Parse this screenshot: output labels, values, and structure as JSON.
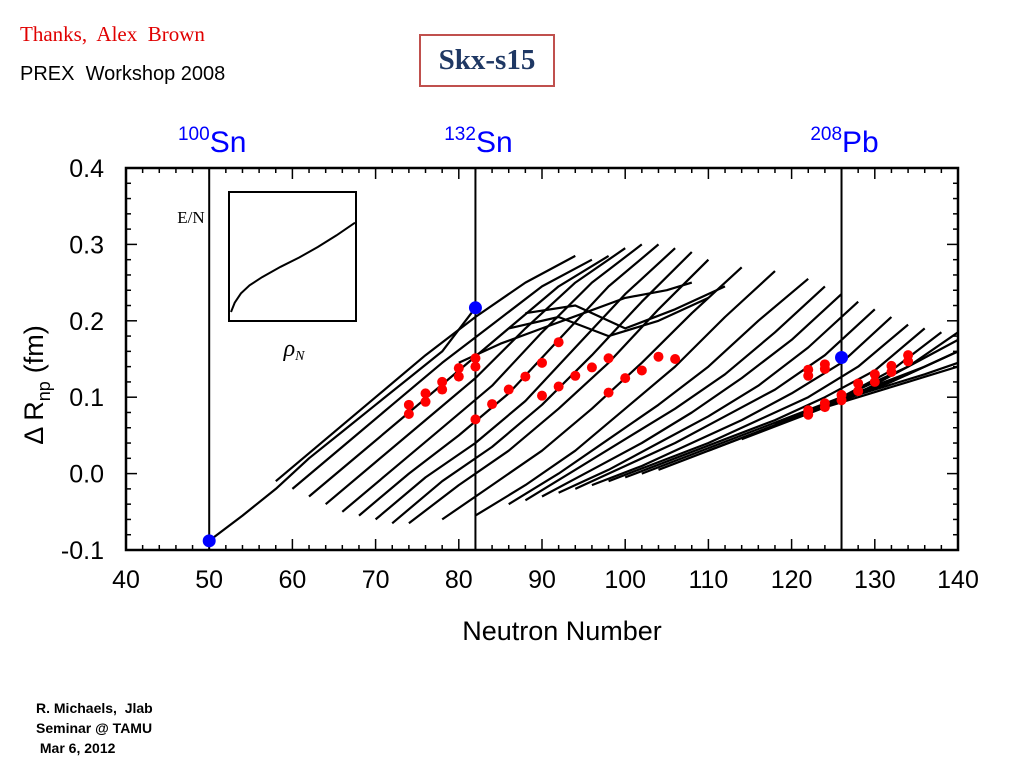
{
  "header": {
    "thanks": "Thanks,  Alex  Brown",
    "workshop": "PREX  Workshop 2008",
    "title": "Skx-s15"
  },
  "footer": {
    "line1": "R. Michaels,  Jlab",
    "line2": "Seminar @ TAMU",
    "line3": " Mar 6, 2012"
  },
  "colors": {
    "accent_red": "#ff0000",
    "marker_blue": "#0000ff",
    "title_blue": "#1f3864",
    "title_border": "#c0504d"
  },
  "chart_data": {
    "type": "line",
    "xlabel": "Neutron Number",
    "ylabel_main": "Δ R",
    "ylabel_sub": "np",
    "ylabel_unit": "(fm)",
    "xlim": [
      40,
      140
    ],
    "ylim": [
      -0.1,
      0.4
    ],
    "xticks": [
      40,
      50,
      60,
      70,
      80,
      90,
      100,
      110,
      120,
      130,
      140
    ],
    "yticks": [
      -0.1,
      0.0,
      0.1,
      0.2,
      0.3,
      0.4
    ],
    "ytick_labels": [
      "-0.1",
      "0.0",
      "0.1",
      "0.2",
      "0.3",
      "0.4"
    ],
    "magic_lines": [
      {
        "n": 50,
        "mass": "100",
        "element": "Sn"
      },
      {
        "n": 82,
        "mass": "132",
        "element": "Sn"
      },
      {
        "n": 126,
        "mass": "208",
        "element": "Pb"
      }
    ],
    "blue_points": [
      {
        "x": 50,
        "y": -0.088
      },
      {
        "x": 82,
        "y": 0.217
      },
      {
        "x": 126,
        "y": 0.152
      }
    ],
    "red_points": [
      [
        74,
        0.09
      ],
      [
        74,
        0.078
      ],
      [
        76,
        0.105
      ],
      [
        76,
        0.094
      ],
      [
        78,
        0.12
      ],
      [
        78,
        0.11
      ],
      [
        80,
        0.138
      ],
      [
        80,
        0.127
      ],
      [
        82,
        0.151
      ],
      [
        82,
        0.14
      ],
      [
        82,
        0.071
      ],
      [
        84,
        0.091
      ],
      [
        86,
        0.11
      ],
      [
        88,
        0.127
      ],
      [
        90,
        0.145
      ],
      [
        90,
        0.102
      ],
      [
        92,
        0.172
      ],
      [
        92,
        0.114
      ],
      [
        94,
        0.128
      ],
      [
        96,
        0.139
      ],
      [
        98,
        0.151
      ],
      [
        98,
        0.106
      ],
      [
        100,
        0.125
      ],
      [
        102,
        0.135
      ],
      [
        104,
        0.153
      ],
      [
        106,
        0.15
      ],
      [
        122,
        0.136
      ],
      [
        122,
        0.128
      ],
      [
        122,
        0.083
      ],
      [
        122,
        0.077
      ],
      [
        124,
        0.143
      ],
      [
        124,
        0.137
      ],
      [
        124,
        0.092
      ],
      [
        124,
        0.087
      ],
      [
        126,
        0.103
      ],
      [
        126,
        0.096
      ],
      [
        128,
        0.118
      ],
      [
        128,
        0.108
      ],
      [
        130,
        0.13
      ],
      [
        130,
        0.12
      ],
      [
        132,
        0.141
      ],
      [
        132,
        0.133
      ],
      [
        134,
        0.155
      ],
      [
        134,
        0.147
      ]
    ],
    "isotope_chains": [
      {
        "x": [
          50,
          54,
          58,
          62,
          66,
          70,
          74,
          78,
          82
        ],
        "y": [
          -0.088,
          -0.055,
          -0.02,
          0.02,
          0.055,
          0.09,
          0.125,
          0.16,
          0.217
        ]
      },
      {
        "x": [
          58,
          64,
          70,
          76,
          82,
          88,
          94
        ],
        "y": [
          -0.01,
          0.045,
          0.1,
          0.155,
          0.205,
          0.25,
          0.285
        ]
      },
      {
        "x": [
          60,
          66,
          72,
          78,
          84,
          90,
          96
        ],
        "y": [
          -0.02,
          0.035,
          0.09,
          0.145,
          0.195,
          0.245,
          0.28
        ]
      },
      {
        "x": [
          62,
          68,
          74,
          80,
          86,
          92,
          98
        ],
        "y": [
          -0.03,
          0.025,
          0.08,
          0.135,
          0.19,
          0.245,
          0.285
        ]
      },
      {
        "x": [
          64,
          70,
          76,
          82,
          88,
          94,
          100
        ],
        "y": [
          -0.04,
          0.015,
          0.07,
          0.125,
          0.19,
          0.25,
          0.295
        ]
      },
      {
        "x": [
          66,
          72,
          78,
          84,
          90,
          96,
          102
        ],
        "y": [
          -0.05,
          0.005,
          0.06,
          0.115,
          0.185,
          0.25,
          0.3
        ]
      },
      {
        "x": [
          68,
          74,
          80,
          86,
          92,
          98,
          104
        ],
        "y": [
          -0.055,
          0.0,
          0.05,
          0.105,
          0.175,
          0.245,
          0.3
        ]
      },
      {
        "x": [
          70,
          76,
          82,
          88,
          94,
          100,
          106
        ],
        "y": [
          -0.06,
          -0.005,
          0.04,
          0.095,
          0.165,
          0.235,
          0.295
        ]
      },
      {
        "x": [
          72,
          78,
          84,
          90,
          96,
          102,
          108
        ],
        "y": [
          -0.065,
          -0.01,
          0.035,
          0.09,
          0.155,
          0.225,
          0.29
        ]
      },
      {
        "x": [
          74,
          80,
          86,
          92,
          98,
          104,
          110
        ],
        "y": [
          -0.065,
          -0.015,
          0.03,
          0.085,
          0.145,
          0.215,
          0.28
        ]
      },
      {
        "x": [
          78,
          84,
          90,
          96,
          102,
          108,
          114
        ],
        "y": [
          -0.06,
          -0.015,
          0.03,
          0.085,
          0.145,
          0.21,
          0.27
        ]
      },
      {
        "x": [
          82,
          88,
          94,
          100,
          106,
          112,
          118
        ],
        "y": [
          -0.055,
          -0.015,
          0.03,
          0.085,
          0.14,
          0.205,
          0.265
        ]
      },
      {
        "x": [
          86,
          92,
          98,
          104,
          110,
          116,
          122
        ],
        "y": [
          -0.04,
          0.0,
          0.045,
          0.09,
          0.14,
          0.2,
          0.255
        ]
      },
      {
        "x": [
          88,
          94,
          100,
          106,
          112,
          118,
          124
        ],
        "y": [
          -0.035,
          0.005,
          0.045,
          0.085,
          0.13,
          0.185,
          0.245
        ]
      },
      {
        "x": [
          90,
          96,
          102,
          108,
          114,
          120,
          126
        ],
        "y": [
          -0.03,
          0.005,
          0.04,
          0.08,
          0.125,
          0.175,
          0.235
        ]
      },
      {
        "x": [
          92,
          98,
          104,
          110,
          116,
          122,
          128
        ],
        "y": [
          -0.025,
          0.005,
          0.04,
          0.075,
          0.115,
          0.165,
          0.225
        ]
      },
      {
        "x": [
          94,
          100,
          106,
          112,
          118,
          124,
          130
        ],
        "y": [
          -0.02,
          0.01,
          0.04,
          0.075,
          0.11,
          0.155,
          0.215
        ]
      },
      {
        "x": [
          96,
          102,
          108,
          114,
          120,
          126,
          132
        ],
        "y": [
          -0.015,
          0.01,
          0.04,
          0.07,
          0.105,
          0.145,
          0.205
        ]
      },
      {
        "x": [
          98,
          104,
          110,
          116,
          122,
          128,
          134
        ],
        "y": [
          -0.01,
          0.015,
          0.04,
          0.07,
          0.1,
          0.14,
          0.195
        ]
      },
      {
        "x": [
          100,
          106,
          112,
          118,
          124,
          130,
          136
        ],
        "y": [
          -0.005,
          0.02,
          0.045,
          0.07,
          0.1,
          0.135,
          0.19
        ]
      },
      {
        "x": [
          102,
          108,
          114,
          120,
          126,
          132,
          138
        ],
        "y": [
          0.0,
          0.025,
          0.05,
          0.075,
          0.1,
          0.135,
          0.185
        ]
      },
      {
        "x": [
          104,
          110,
          116,
          122,
          128,
          134,
          140
        ],
        "y": [
          0.005,
          0.03,
          0.055,
          0.08,
          0.105,
          0.14,
          0.185
        ]
      },
      {
        "x": [
          110,
          116,
          122,
          128,
          134,
          140
        ],
        "y": [
          0.03,
          0.055,
          0.08,
          0.11,
          0.14,
          0.175
        ]
      },
      {
        "x": [
          114,
          120,
          126,
          132,
          138,
          140
        ],
        "y": [
          0.045,
          0.07,
          0.095,
          0.12,
          0.15,
          0.16
        ]
      },
      {
        "x": [
          116,
          122,
          128,
          134,
          140
        ],
        "y": [
          0.055,
          0.08,
          0.105,
          0.13,
          0.16
        ]
      },
      {
        "x": [
          118,
          124,
          130,
          136,
          140
        ],
        "y": [
          0.065,
          0.09,
          0.115,
          0.14,
          0.16
        ]
      },
      {
        "x": [
          122,
          128,
          134,
          140
        ],
        "y": [
          0.08,
          0.1,
          0.12,
          0.14
        ]
      },
      {
        "x": [
          124,
          130,
          136,
          140
        ],
        "y": [
          0.09,
          0.11,
          0.13,
          0.145
        ]
      },
      {
        "x": [
          80,
          85,
          90,
          95,
          100,
          105,
          108
        ],
        "y": [
          0.145,
          0.17,
          0.19,
          0.21,
          0.23,
          0.24,
          0.25
        ]
      },
      {
        "x": [
          86,
          92,
          98,
          104,
          110
        ],
        "y": [
          0.19,
          0.205,
          0.18,
          0.2,
          0.23
        ]
      },
      {
        "x": [
          88,
          94,
          100,
          106,
          112
        ],
        "y": [
          0.21,
          0.22,
          0.19,
          0.215,
          0.245
        ]
      }
    ],
    "inset": {
      "ylabel": "E/N",
      "xlabel_symbol": "ρ",
      "xlabel_sub": "N",
      "curve": {
        "x": [
          0.0,
          0.03,
          0.08,
          0.15,
          0.25,
          0.4,
          0.55,
          0.7,
          0.85,
          1.0
        ],
        "y": [
          0.0,
          0.08,
          0.16,
          0.23,
          0.3,
          0.39,
          0.47,
          0.56,
          0.66,
          0.77
        ]
      }
    }
  }
}
